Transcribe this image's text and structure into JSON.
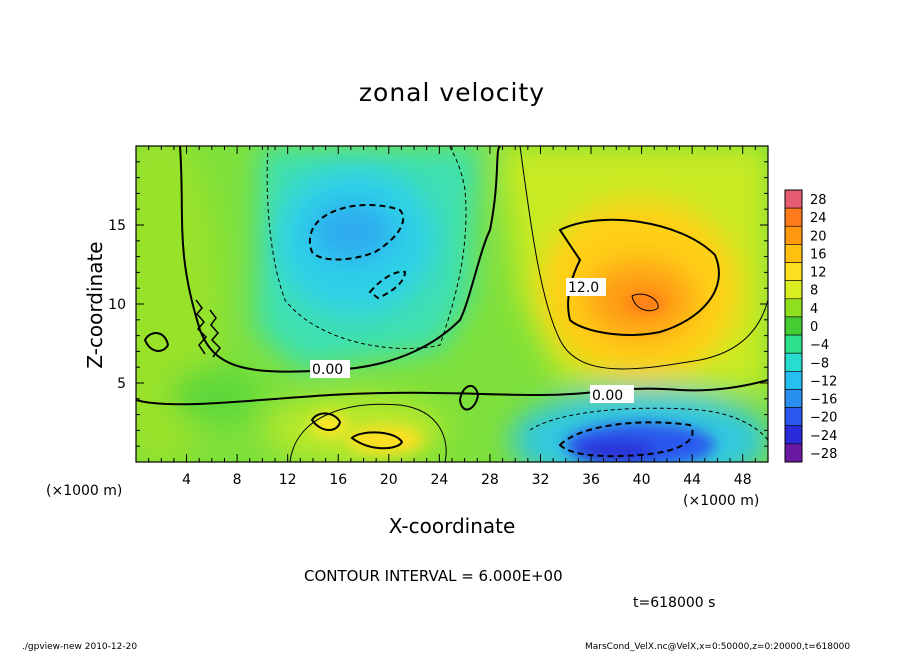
{
  "chart_data": {
    "type": "heatmap",
    "title": "zonal velocity",
    "xlabel": "X-coordinate",
    "ylabel": "Z-coordinate",
    "x_unit_label": "(×1000 m)",
    "xlim": [
      0,
      50
    ],
    "ylim": [
      0,
      20
    ],
    "x_ticks": [
      4,
      8,
      12,
      16,
      20,
      24,
      28,
      32,
      36,
      40,
      44,
      48
    ],
    "y_ticks": [
      5,
      10,
      15
    ],
    "colorbar": {
      "levels": [
        28,
        24,
        20,
        16,
        12,
        8,
        4,
        0,
        -4,
        -8,
        -12,
        -16,
        -20,
        -24,
        -28
      ],
      "colors": [
        "#e65c73",
        "#ff7a1a",
        "#ff9a10",
        "#ffc010",
        "#ffe020",
        "#d8ee20",
        "#8ee01e",
        "#44cc33",
        "#2ee08a",
        "#28ddd0",
        "#27bef0",
        "#2a90f0",
        "#2c58ee",
        "#2a2ad8",
        "#6a1aa0"
      ]
    },
    "contour_labels": [
      "0.00",
      "0.00",
      "12.0"
    ],
    "contour_interval": "CONTOUR INTERVAL = 6.000E+00",
    "time": "t=618000 s",
    "fields": [
      {
        "name": "upper-left negative cell",
        "x": 19,
        "z": 15,
        "value": -14
      },
      {
        "name": "small negative lobe",
        "x": 20,
        "z": 10.5,
        "value": -10
      },
      {
        "name": "upper-right positive cell",
        "x": 40,
        "z": 10.5,
        "value": 20
      },
      {
        "name": "bottom negative jet",
        "x": 40,
        "z": 1.5,
        "value": -20
      },
      {
        "name": "bottom positive cell",
        "x": 19,
        "z": 1.5,
        "value": 10
      }
    ]
  },
  "footer": {
    "left": "./gpview-new   2010-12-20",
    "right": "MarsCond_VelX.nc@VelX,x=0:50000,z=0:20000,t=618000"
  }
}
